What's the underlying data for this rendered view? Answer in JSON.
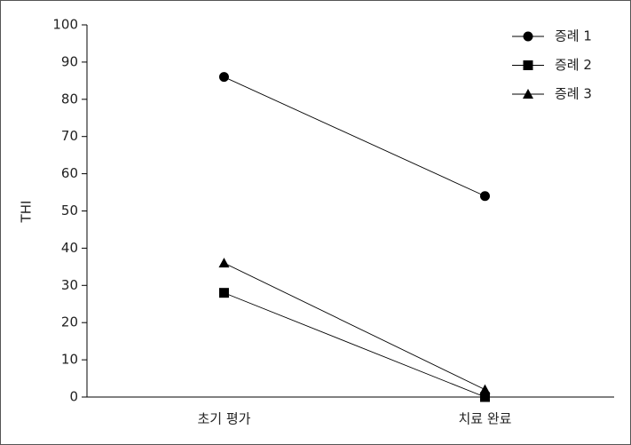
{
  "chart_data": {
    "type": "line",
    "y_label": "THI",
    "categories": [
      "초기 평가",
      "치료 완료"
    ],
    "series": [
      {
        "name": "증례 1",
        "color": "#000000",
        "marker": "circle",
        "values": [
          86,
          54
        ]
      },
      {
        "name": "증례 2",
        "color": "#000000",
        "marker": "square",
        "values": [
          28,
          0
        ]
      },
      {
        "name": "증례 3",
        "color": "#000000",
        "marker": "triangle",
        "values": [
          36,
          2
        ]
      }
    ],
    "ylim": [
      0,
      100
    ],
    "yticks": [
      0,
      10,
      20,
      30,
      40,
      50,
      60,
      70,
      80,
      90,
      100
    ],
    "legend": "upper right"
  }
}
